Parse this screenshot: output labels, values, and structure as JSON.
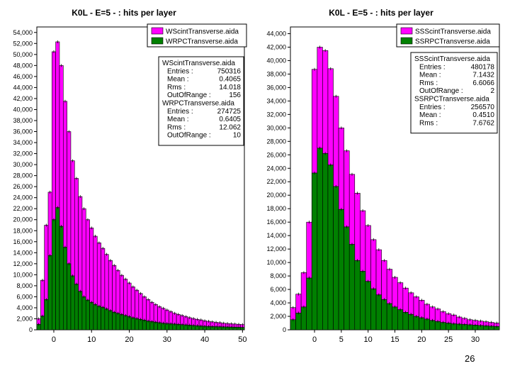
{
  "slide_number": "26",
  "colors": {
    "scint": "#ff00ff",
    "rpc": "#008000",
    "outline": "#000000"
  },
  "chart_data": [
    {
      "type": "bar",
      "title": "K0L - E=5 - : hits per layer",
      "xlabel": "",
      "ylabel": "",
      "xlim": [
        -4.5,
        50.5
      ],
      "ylim": [
        0,
        55000
      ],
      "x_ticks": [
        0,
        10,
        20,
        30,
        40,
        50
      ],
      "y_ticks": [
        0,
        2000,
        4000,
        6000,
        8000,
        10000,
        12000,
        14000,
        16000,
        18000,
        20000,
        22000,
        24000,
        26000,
        28000,
        30000,
        32000,
        34000,
        36000,
        38000,
        40000,
        42000,
        44000,
        46000,
        48000,
        50000,
        52000,
        54000
      ],
      "y_tick_labels": [
        "0",
        "2,000",
        "4,000",
        "6,000",
        "8,000",
        "10,000",
        "12,000",
        "14,000",
        "16,000",
        "18,000",
        "20,000",
        "22,000",
        "24,000",
        "26,000",
        "28,000",
        "30,000",
        "32,000",
        "34,000",
        "36,000",
        "38,000",
        "40,000",
        "42,000",
        "44,000",
        "46,000",
        "48,000",
        "50,000",
        "52,000",
        "54,000"
      ],
      "x": [
        -4,
        -3,
        -2,
        -1,
        0,
        1,
        2,
        3,
        4,
        5,
        6,
        7,
        8,
        9,
        10,
        11,
        12,
        13,
        14,
        15,
        16,
        17,
        18,
        19,
        20,
        21,
        22,
        23,
        24,
        25,
        26,
        27,
        28,
        29,
        30,
        31,
        32,
        33,
        34,
        35,
        36,
        37,
        38,
        39,
        40,
        41,
        42,
        43,
        44,
        45,
        46,
        47,
        48,
        49,
        50
      ],
      "series": [
        {
          "name": "WScintTransverse.aida",
          "color": "#ff00ff",
          "values": [
            2000,
            9000,
            19000,
            25000,
            50500,
            52300,
            48000,
            41500,
            36000,
            30700,
            27500,
            24200,
            22000,
            20000,
            18500,
            17000,
            15800,
            14800,
            13700,
            12600,
            11700,
            10800,
            9900,
            9200,
            8500,
            7800,
            7200,
            6600,
            6000,
            5500,
            5000,
            4600,
            4200,
            3900,
            3600,
            3300,
            3000,
            2800,
            2600,
            2400,
            2200,
            2050,
            1900,
            1800,
            1650,
            1550,
            1450,
            1350,
            1300,
            1200,
            1150,
            1100,
            1050,
            1000,
            950
          ]
        },
        {
          "name": "WRPCTransverse.aida",
          "color": "#008000",
          "values": [
            1000,
            2500,
            5500,
            13500,
            20000,
            22200,
            18800,
            15000,
            12000,
            9800,
            8300,
            7000,
            6000,
            5400,
            5000,
            4600,
            4300,
            4100,
            3800,
            3500,
            3200,
            3000,
            2800,
            2600,
            2400,
            2200,
            2050,
            1900,
            1750,
            1600,
            1500,
            1400,
            1300,
            1200,
            1150,
            1100,
            1050,
            1000,
            950,
            900,
            850,
            800,
            750,
            700,
            650,
            620,
            600,
            580,
            560,
            540,
            520,
            500,
            480,
            460,
            440
          ]
        }
      ],
      "legend": {
        "placement": "top-right"
      },
      "stats": [
        {
          "title": "WScintTransverse.aida",
          "rows": [
            {
              "label": "Entries :",
              "value": "750316"
            },
            {
              "label": "Mean :",
              "value": "0.4065"
            },
            {
              "label": "Rms :",
              "value": "14.018"
            },
            {
              "label": "OutOfRange :",
              "value": "156"
            }
          ]
        },
        {
          "title": "WRPCTransverse.aida",
          "rows": [
            {
              "label": "Entries :",
              "value": "274725"
            },
            {
              "label": "Mean :",
              "value": "0.6405"
            },
            {
              "label": "Rms :",
              "value": "12.062"
            },
            {
              "label": "OutOfRange :",
              "value": "10"
            }
          ]
        }
      ]
    },
    {
      "type": "bar",
      "title": "K0L - E=5 - : hits per layer",
      "xlabel": "",
      "ylabel": "",
      "xlim": [
        -4.5,
        34.5
      ],
      "ylim": [
        0,
        45000
      ],
      "x_ticks": [
        0,
        5,
        10,
        15,
        20,
        25,
        30
      ],
      "y_ticks": [
        0,
        2000,
        4000,
        6000,
        8000,
        10000,
        12000,
        14000,
        16000,
        18000,
        20000,
        22000,
        24000,
        26000,
        28000,
        30000,
        32000,
        34000,
        36000,
        38000,
        40000,
        42000,
        44000
      ],
      "y_tick_labels": [
        "0",
        "2,000",
        "4,000",
        "6,000",
        "8,000",
        "10,000",
        "12,000",
        "14,000",
        "16,000",
        "18,000",
        "20,000",
        "22,000",
        "24,000",
        "26,000",
        "28,000",
        "30,000",
        "32,000",
        "34,000",
        "36,000",
        "38,000",
        "40,000",
        "42,000",
        "44,000"
      ],
      "x": [
        -4,
        -3,
        -2,
        -1,
        0,
        1,
        2,
        3,
        4,
        5,
        6,
        7,
        8,
        9,
        10,
        11,
        12,
        13,
        14,
        15,
        16,
        17,
        18,
        19,
        20,
        21,
        22,
        23,
        24,
        25,
        26,
        27,
        28,
        29,
        30,
        31,
        32,
        33,
        34
      ],
      "series": [
        {
          "name": "SSScintTransverse.aida",
          "color": "#ff00ff",
          "values": [
            3300,
            5300,
            8500,
            16000,
            38700,
            42000,
            41500,
            38800,
            34700,
            30000,
            26600,
            23100,
            20300,
            17700,
            15500,
            13400,
            11900,
            10300,
            9000,
            7800,
            7000,
            6200,
            5500,
            4900,
            4400,
            3800,
            3400,
            3100,
            2700,
            2400,
            2200,
            1900,
            1700,
            1500,
            1400,
            1300,
            1200,
            1100,
            1000
          ]
        },
        {
          "name": "SSRPCTransverse.aida",
          "color": "#008000",
          "values": [
            1500,
            2500,
            3400,
            7700,
            23300,
            27000,
            26200,
            24500,
            21300,
            17900,
            15300,
            12700,
            10300,
            8700,
            7200,
            6100,
            5200,
            4500,
            3900,
            3400,
            3000,
            2600,
            2300,
            2000,
            1800,
            1600,
            1400,
            1250,
            1100,
            1000,
            900,
            850,
            800,
            750,
            700,
            650,
            600,
            550,
            500
          ]
        }
      ],
      "legend": {
        "placement": "top-right"
      },
      "stats": [
        {
          "title": "SSScintTransverse.aida",
          "rows": [
            {
              "label": "Entries :",
              "value": "480178"
            },
            {
              "label": "Mean :",
              "value": "7.1432"
            },
            {
              "label": "Rms :",
              "value": "6.6066"
            },
            {
              "label": "OutOfRange :",
              "value": "2"
            }
          ]
        },
        {
          "title": "SSRPCTransverse.aida",
          "rows": [
            {
              "label": "Entries :",
              "value": "256570"
            },
            {
              "label": "Mean :",
              "value": "0.4510"
            },
            {
              "label": "Rms :",
              "value": "7.6762"
            }
          ]
        }
      ]
    }
  ]
}
